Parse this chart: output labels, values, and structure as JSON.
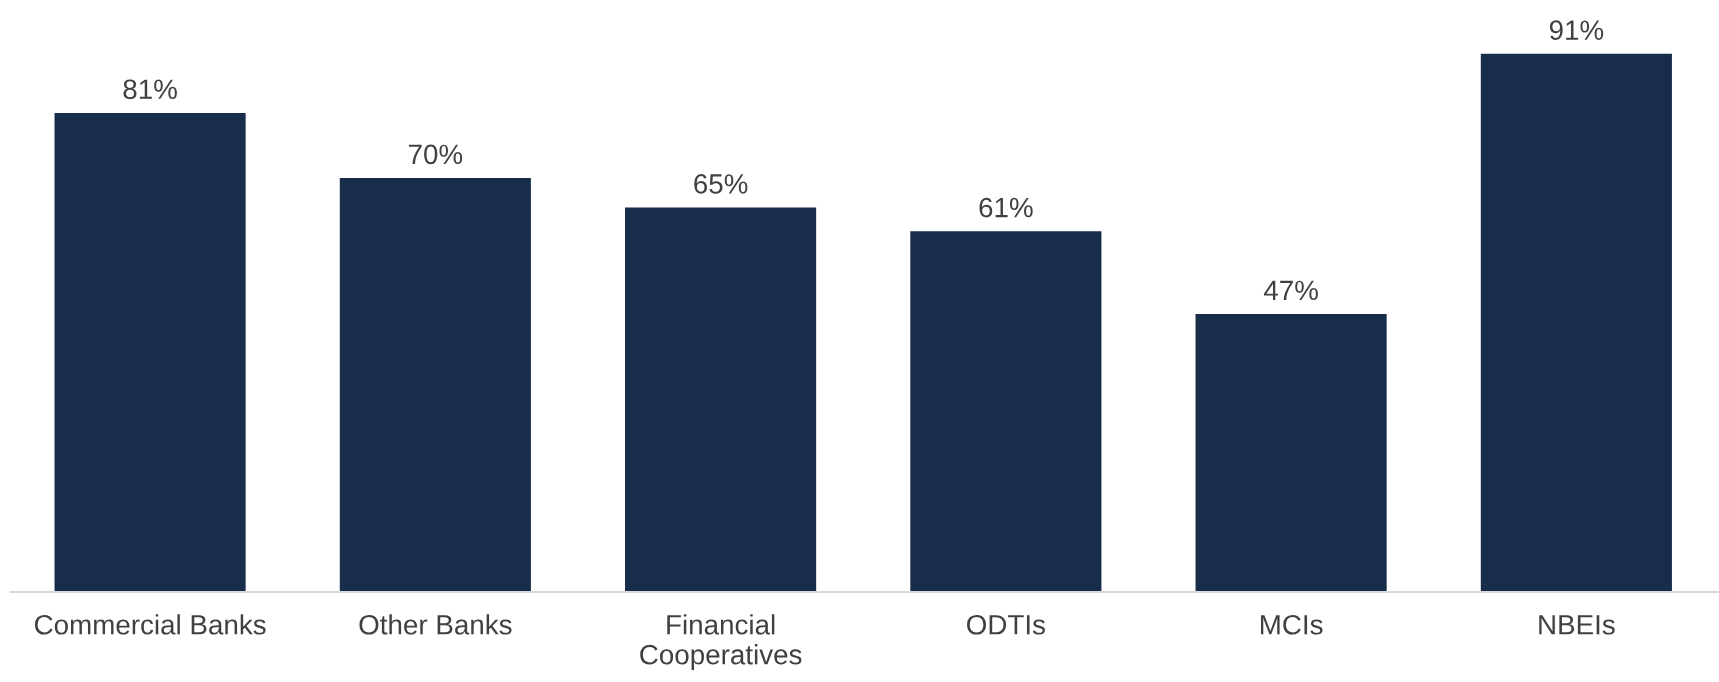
{
  "chart_data": {
    "type": "bar",
    "categories": [
      "Commercial Banks",
      "Other Banks",
      "Financial\nCooperatives",
      "ODTIs",
      "MCIs",
      "NBEIs"
    ],
    "values": [
      81,
      70,
      65,
      61,
      47,
      91
    ],
    "value_labels": [
      "81%",
      "70%",
      "65%",
      "61%",
      "47%",
      "91%"
    ],
    "color": "#172d4a",
    "grid": false,
    "legend": false
  }
}
